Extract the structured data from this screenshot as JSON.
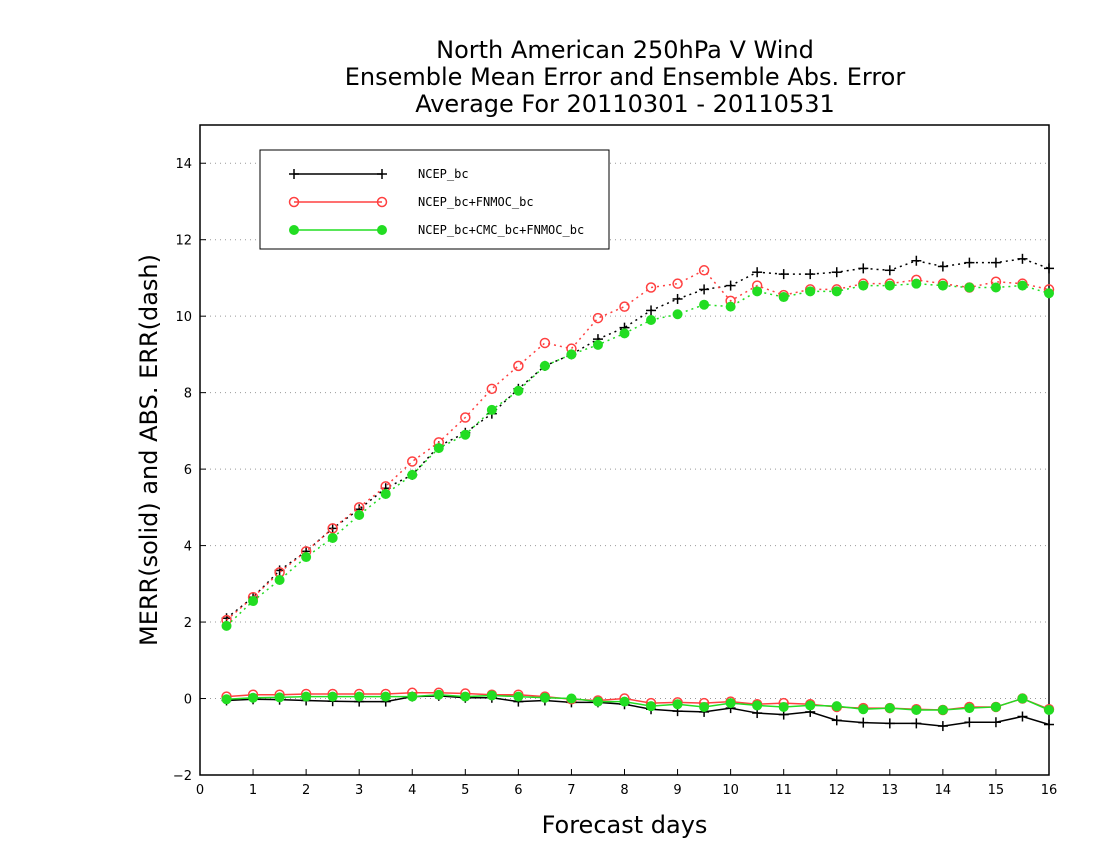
{
  "chart_data": {
    "type": "line",
    "title": [
      "North American 250hPa V Wind",
      "Ensemble Mean Error and Ensemble Abs. Error",
      "Average For 20110301 - 20110531"
    ],
    "xlabel": "Forecast days",
    "ylabel": "MERR(solid) and ABS. ERR(dash)",
    "xlim": [
      0,
      16
    ],
    "ylim": [
      -2,
      15
    ],
    "xticks": [
      0,
      1,
      2,
      3,
      4,
      5,
      6,
      7,
      8,
      9,
      10,
      11,
      12,
      13,
      14,
      15,
      16
    ],
    "yticks": [
      -2,
      0,
      2,
      4,
      6,
      8,
      10,
      12,
      14
    ],
    "grid": "horizontal dotted",
    "legend_position": "top-left",
    "x": [
      0.5,
      1,
      1.5,
      2,
      2.5,
      3,
      3.5,
      4,
      4.5,
      5,
      5.5,
      6,
      6.5,
      7,
      7.5,
      8,
      8.5,
      9,
      9.5,
      10,
      10.5,
      11,
      11.5,
      12,
      12.5,
      13,
      13.5,
      14,
      14.5,
      15,
      15.5,
      16
    ],
    "series": [
      {
        "name": "NCEP_bc",
        "color": "#000000",
        "marker": "plus",
        "abs_err": [
          2.1,
          2.65,
          3.35,
          3.85,
          4.45,
          4.95,
          5.5,
          5.85,
          6.6,
          6.95,
          7.45,
          8.1,
          8.7,
          9.0,
          9.4,
          9.7,
          10.15,
          10.45,
          10.7,
          10.8,
          11.15,
          11.1,
          11.1,
          11.15,
          11.25,
          11.2,
          11.45,
          11.3,
          11.4,
          11.4,
          11.5,
          11.25
        ],
        "mean_err": [
          -0.05,
          -0.02,
          -0.03,
          -0.05,
          -0.07,
          -0.08,
          -0.08,
          0.05,
          0.07,
          0.02,
          0.02,
          -0.08,
          -0.05,
          -0.1,
          -0.1,
          -0.15,
          -0.28,
          -0.33,
          -0.35,
          -0.25,
          -0.38,
          -0.42,
          -0.35,
          -0.57,
          -0.63,
          -0.65,
          -0.65,
          -0.72,
          -0.62,
          -0.62,
          -0.47,
          -0.68
        ]
      },
      {
        "name": "NCEP_bc+FNMOC_bc",
        "color": "#ff4040",
        "marker": "open-circle",
        "abs_err": [
          2.05,
          2.65,
          3.3,
          3.85,
          4.45,
          5.0,
          5.55,
          6.2,
          6.7,
          7.35,
          8.1,
          8.7,
          9.3,
          9.15,
          9.95,
          10.25,
          10.75,
          10.85,
          11.2,
          10.4,
          10.8,
          10.55,
          10.7,
          10.7,
          10.85,
          10.85,
          10.95,
          10.85,
          10.75,
          10.9,
          10.85,
          10.7
        ],
        "mean_err": [
          0.05,
          0.1,
          0.1,
          0.12,
          0.12,
          0.12,
          0.12,
          0.15,
          0.15,
          0.13,
          0.1,
          0.1,
          0.05,
          -0.02,
          -0.05,
          0.0,
          -0.12,
          -0.1,
          -0.12,
          -0.08,
          -0.15,
          -0.12,
          -0.15,
          -0.22,
          -0.25,
          -0.25,
          -0.28,
          -0.3,
          -0.22,
          -0.22,
          0.0,
          -0.28
        ]
      },
      {
        "name": "NCEP_bc+CMC_bc+FNMOC_bc",
        "color": "#22dd22",
        "marker": "filled-circle",
        "abs_err": [
          1.9,
          2.55,
          3.1,
          3.7,
          4.2,
          4.8,
          5.35,
          5.85,
          6.55,
          6.9,
          7.55,
          8.05,
          8.7,
          9.0,
          9.25,
          9.55,
          9.9,
          10.05,
          10.3,
          10.25,
          10.65,
          10.5,
          10.65,
          10.65,
          10.8,
          10.8,
          10.85,
          10.8,
          10.75,
          10.75,
          10.8,
          10.6
        ],
        "mean_err": [
          -0.02,
          0.02,
          0.03,
          0.05,
          0.05,
          0.05,
          0.05,
          0.05,
          0.1,
          0.05,
          0.08,
          0.05,
          0.02,
          0.0,
          -0.08,
          -0.08,
          -0.2,
          -0.15,
          -0.22,
          -0.12,
          -0.18,
          -0.22,
          -0.18,
          -0.2,
          -0.28,
          -0.25,
          -0.3,
          -0.3,
          -0.25,
          -0.22,
          0.0,
          -0.3
        ]
      }
    ]
  }
}
